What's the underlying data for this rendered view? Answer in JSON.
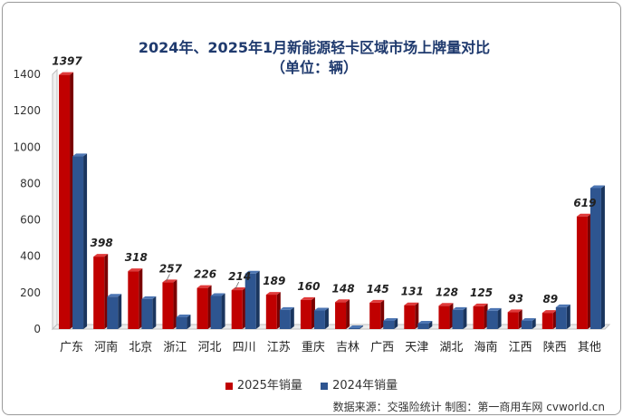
{
  "chart_data": {
    "type": "bar",
    "title": "2024年、2025年1月新能源轻卡区域市场上牌量对比",
    "subtitle": "（单位：辆）",
    "categories": [
      "广东",
      "河南",
      "北京",
      "浙江",
      "河北",
      "四川",
      "江苏",
      "重庆",
      "吉林",
      "广西",
      "天津",
      "湖北",
      "海南",
      "江西",
      "陕西",
      "其他"
    ],
    "series": [
      {
        "name": "2025年销量",
        "color": "#c00000",
        "values": [
          1397,
          398,
          318,
          257,
          226,
          214,
          189,
          160,
          148,
          145,
          131,
          128,
          125,
          93,
          89,
          619
        ]
      },
      {
        "name": "2024年销量",
        "color": "#2e5590",
        "values": [
          950,
          178,
          165,
          65,
          182,
          305,
          105,
          102,
          5,
          45,
          30,
          105,
          100,
          45,
          120,
          775
        ]
      }
    ],
    "data_labels": [
      "1397",
      "398",
      "318",
      "257",
      "226",
      "214",
      "189",
      "160",
      "148",
      "145",
      "131",
      "128",
      "125",
      "93",
      "89",
      "619"
    ],
    "ylim": [
      0,
      1400
    ],
    "yticks": [
      0,
      200,
      400,
      600,
      800,
      1000,
      1200,
      1400
    ],
    "grid": false,
    "legend": "bottom"
  },
  "source": "数据来源：交强险统计  制图：第一商用车网 cvworld.cn"
}
